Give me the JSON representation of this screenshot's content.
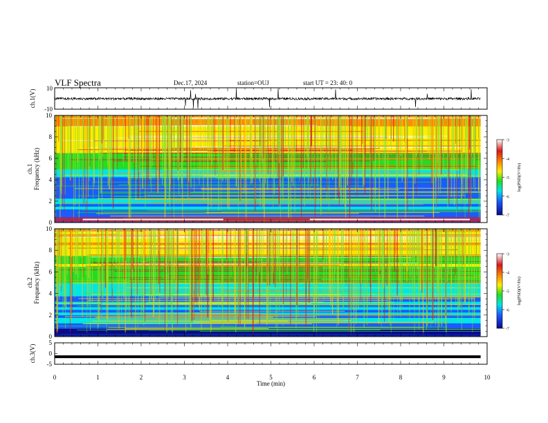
{
  "header": {
    "title": "VLF Spectra",
    "date": "Dec.17, 2024",
    "station": "station=OUJ",
    "start_ut": "start  UT  =   23: 40: 0"
  },
  "colorbar": {
    "label": "log(PSD)(V²/Hz)",
    "ticks": [
      "-3",
      "-4",
      "-5",
      "-6",
      "-7"
    ],
    "colors": [
      "#ffffff",
      "#d7191c",
      "#ff8c00",
      "#ffee00",
      "#22dd22",
      "#00e5e5",
      "#1a5cff",
      "#0a0a8a"
    ]
  },
  "chart_data": [
    {
      "type": "line",
      "panel": "ch.1 waveform",
      "ylabel": "ch.1(V)",
      "ylim": [
        -10,
        10
      ],
      "yticks": [
        "10",
        "-10"
      ],
      "x": [
        0,
        10
      ],
      "baseline": -0.2,
      "note_values": "noise band roughly ±1 V with spikes up to ±10 V"
    },
    {
      "type": "heatmap",
      "panel": "ch.1 spectrogram",
      "ylabel": "ch.1 Frequency (kHz)",
      "ylim": [
        0,
        10
      ],
      "yticks": [
        "0",
        "2",
        "4",
        "6",
        "8",
        "10"
      ],
      "xlim": [
        0,
        10
      ],
      "data_extent_min": 9.85,
      "clim": [
        -7,
        -3
      ]
    },
    {
      "type": "heatmap",
      "panel": "ch.2 spectrogram",
      "ylabel": "ch.2 Frequency (kHz)",
      "ylim": [
        0,
        10
      ],
      "yticks": [
        "0",
        "2",
        "4",
        "6",
        "8",
        "10"
      ],
      "xlim": [
        0,
        10
      ],
      "data_extent_min": 9.85,
      "clim": [
        -7,
        -3
      ]
    },
    {
      "type": "line",
      "panel": "ch.3 waveform",
      "ylabel": "ch.3(V)",
      "ylim": [
        -5,
        5
      ],
      "yticks": [
        "5",
        "0",
        "-5"
      ],
      "x": [
        0,
        9.85
      ],
      "y": [
        -1.5,
        -1.5
      ]
    }
  ],
  "xaxis": {
    "label": "Time (min)",
    "ticks": [
      "0",
      "1",
      "2",
      "3",
      "4",
      "5",
      "6",
      "7",
      "8",
      "9",
      "10"
    ]
  }
}
